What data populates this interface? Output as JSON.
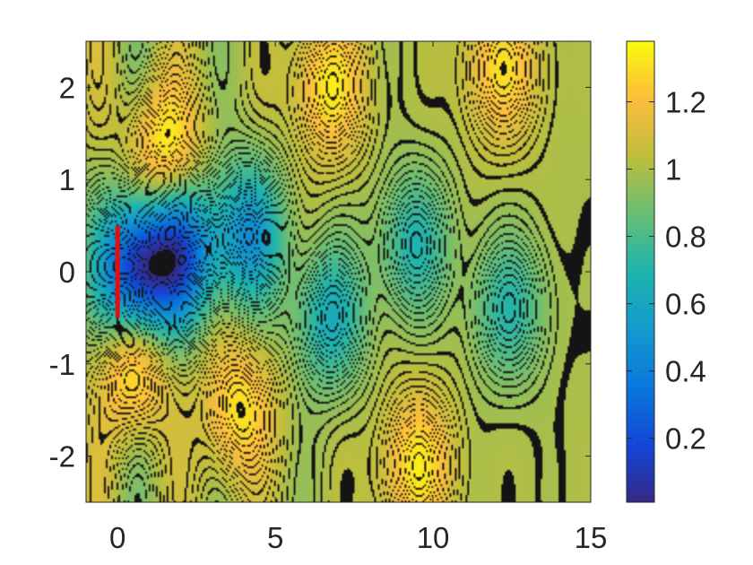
{
  "chart_data": {
    "type": "heatmap",
    "title": "",
    "xlabel": "",
    "ylabel": "",
    "xlim": [
      -1,
      15
    ],
    "ylim": [
      -2.5,
      2.5
    ],
    "x_ticks": [
      0,
      5,
      10,
      15
    ],
    "y_ticks": [
      -2,
      -1,
      0,
      1,
      2
    ],
    "x_tick_labels": [
      "0",
      "5",
      "10",
      "15"
    ],
    "y_tick_labels": [
      "-2",
      "-1",
      "0",
      "1",
      "2"
    ],
    "colorbar": {
      "colormap": "parula",
      "range": [
        0.01,
        1.38
      ],
      "ticks": [
        0.2,
        0.4,
        0.6,
        0.8,
        1.0,
        1.2
      ],
      "tick_labels": [
        "0.2",
        "0.4",
        "0.6",
        "0.8",
        "1",
        "1.2"
      ]
    },
    "contour_lines": "black, dense",
    "grid": false,
    "obstacle": {
      "x": [
        0,
        0
      ],
      "y": [
        -0.5,
        0.5
      ],
      "color": "#e01010"
    },
    "features": [
      {
        "kind": "low",
        "x": 0.6,
        "y": 0.0,
        "value": 0.05
      },
      {
        "kind": "low",
        "x": 2.0,
        "y": 0.2,
        "value": 0.3
      },
      {
        "kind": "low",
        "x": 4.1,
        "y": 0.4,
        "value": 0.5
      },
      {
        "kind": "low",
        "x": 6.7,
        "y": -0.5,
        "value": 0.65
      },
      {
        "kind": "low",
        "x": 9.4,
        "y": 0.3,
        "value": 0.7
      },
      {
        "kind": "low",
        "x": 12.4,
        "y": -0.4,
        "value": 0.72
      },
      {
        "kind": "high",
        "x": 1.5,
        "y": 1.3,
        "value": 1.38
      },
      {
        "kind": "high",
        "x": 3.8,
        "y": -1.5,
        "value": 1.32
      },
      {
        "kind": "high",
        "x": 6.7,
        "y": 2.0,
        "value": 1.33
      },
      {
        "kind": "high",
        "x": 9.5,
        "y": -2.1,
        "value": 1.33
      },
      {
        "kind": "high",
        "x": 12.2,
        "y": 2.2,
        "value": 1.3
      },
      {
        "kind": "high",
        "x": 0.5,
        "y": -1.0,
        "value": 1.38
      }
    ]
  }
}
